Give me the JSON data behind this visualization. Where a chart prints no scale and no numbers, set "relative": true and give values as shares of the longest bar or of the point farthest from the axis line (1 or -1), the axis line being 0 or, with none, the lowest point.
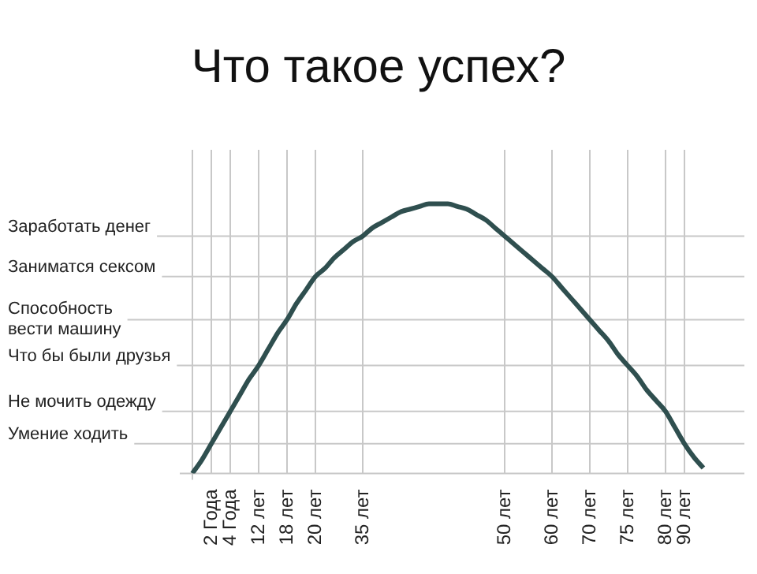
{
  "chart_data": {
    "type": "line",
    "title": "Что такое успех?",
    "relative": true,
    "categories": [
      null,
      null,
      "2 Года",
      null,
      "4 Года",
      null,
      null,
      "12 лет",
      null,
      null,
      "18 лет",
      null,
      null,
      "20 лет",
      null,
      null,
      null,
      null,
      "35 лет",
      null,
      null,
      null,
      null,
      null,
      null,
      null,
      null,
      null,
      null,
      null,
      null,
      null,
      null,
      "50 лет",
      null,
      null,
      null,
      null,
      "60 лет",
      null,
      null,
      null,
      "70 лет",
      null,
      null,
      null,
      "75 лет",
      null,
      null,
      null,
      "80 лет",
      null,
      "90 лет",
      null,
      null
    ],
    "values": [
      0,
      0.05,
      0.11,
      0.17,
      0.23,
      0.29,
      0.35,
      0.4,
      0.46,
      0.52,
      0.57,
      0.63,
      0.68,
      0.73,
      0.76,
      0.8,
      0.83,
      0.86,
      0.88,
      0.91,
      0.93,
      0.95,
      0.97,
      0.98,
      0.99,
      1,
      1,
      1,
      0.99,
      0.98,
      0.96,
      0.94,
      0.91,
      0.88,
      0.85,
      0.82,
      0.79,
      0.76,
      0.73,
      0.69,
      0.65,
      0.61,
      0.57,
      0.53,
      0.49,
      0.44,
      0.4,
      0.36,
      0.31,
      0.27,
      0.23,
      0.17,
      0.11,
      0.06,
      0.02
    ],
    "color": "#2f4f4f",
    "grid": "x",
    "legend": false,
    "ref_lines": [
      {
        "axis": "y",
        "value": 0.88,
        "label": "Заработать денег"
      },
      {
        "axis": "y",
        "value": 0.73,
        "label": "Заниматся сексом"
      },
      {
        "axis": "y",
        "value": 0.57,
        "label": "Способность вести машину"
      },
      {
        "axis": "y",
        "value": 0.4,
        "label": "Что бы были друзья"
      },
      {
        "axis": "y",
        "value": 0.23,
        "label": "Не мочить одежду"
      },
      {
        "axis": "y",
        "value": 0.11,
        "label": "Умение ходить"
      }
    ]
  }
}
